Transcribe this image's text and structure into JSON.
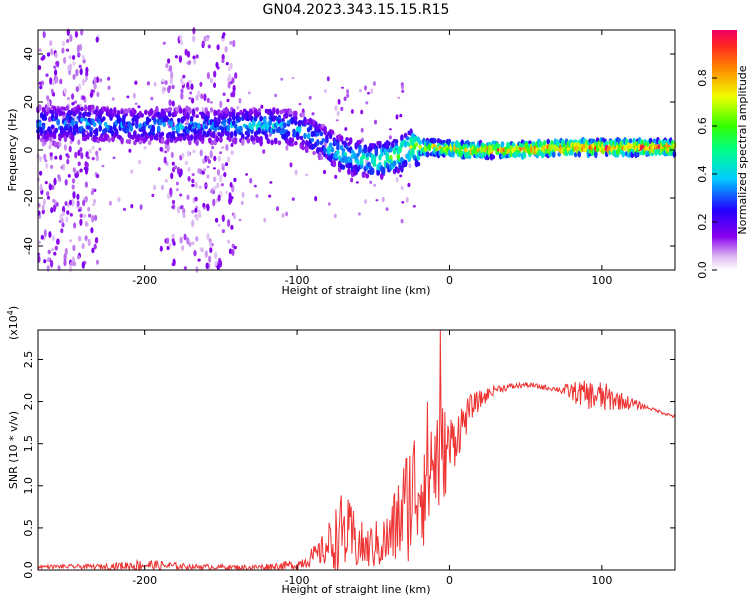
{
  "title": "GN04.2023.343.15.15.R15",
  "chart_data": [
    {
      "type": "heatmap",
      "name": "spectrogram",
      "xlabel": "Height of straight line (km)",
      "ylabel": "Frequency (Hz)",
      "xlim": [
        -270,
        148
      ],
      "ylim": [
        -50,
        50
      ],
      "xticks": [
        "-200",
        "-100",
        "0",
        "100"
      ],
      "xtick_values": [
        -200,
        -100,
        0,
        100
      ],
      "yticks": [
        "40",
        "20",
        "0",
        "-20",
        "-40"
      ],
      "ytick_values": [
        40,
        20,
        0,
        -20,
        -40
      ],
      "colorbar": {
        "label": "Normalized spectral amplitude",
        "ticks": [
          "0.0",
          "0.2",
          "0.4",
          "0.6",
          "0.8"
        ],
        "tick_values": [
          0.0,
          0.2,
          0.4,
          0.6,
          0.8
        ],
        "range": [
          0,
          1
        ]
      },
      "ridge": [
        {
          "x": -270,
          "y": 11,
          "amp": 0.35
        },
        {
          "x": -240,
          "y": 11,
          "amp": 0.4
        },
        {
          "x": -210,
          "y": 10,
          "amp": 0.35
        },
        {
          "x": -180,
          "y": 10,
          "amp": 0.4
        },
        {
          "x": -150,
          "y": 10,
          "amp": 0.35
        },
        {
          "x": -120,
          "y": 10,
          "amp": 0.45
        },
        {
          "x": -100,
          "y": 9,
          "amp": 0.4
        },
        {
          "x": -85,
          "y": 4,
          "amp": 0.4
        },
        {
          "x": -70,
          "y": -2,
          "amp": 0.5
        },
        {
          "x": -55,
          "y": -4,
          "amp": 0.5
        },
        {
          "x": -40,
          "y": -4,
          "amp": 0.6
        },
        {
          "x": -25,
          "y": 1,
          "amp": 0.7
        },
        {
          "x": -10,
          "y": 1,
          "amp": 0.8
        },
        {
          "x": 10,
          "y": 0,
          "amp": 0.9
        },
        {
          "x": 40,
          "y": 0,
          "amp": 0.95
        },
        {
          "x": 80,
          "y": 1,
          "amp": 1.0
        },
        {
          "x": 120,
          "y": 1,
          "amp": 1.0
        },
        {
          "x": 148,
          "y": 1,
          "amp": 0.95
        }
      ],
      "noise_bands_x": [
        [
          -270,
          -230
        ],
        [
          -190,
          -140
        ]
      ]
    },
    {
      "type": "line",
      "name": "snr",
      "xlabel": "Height of straight line (km)",
      "ylabel": "SNR (10 * v/v)",
      "scale_label": "(x10",
      "scale_exp": "4",
      "scale_suffix": ")",
      "color": "#ee3333",
      "xlim": [
        -270,
        148
      ],
      "ylim": [
        0,
        2.85
      ],
      "xticks": [
        "-200",
        "-100",
        "0",
        "100"
      ],
      "xtick_values": [
        -200,
        -100,
        0,
        100
      ],
      "yticks": [
        "0.0",
        "0.5",
        "1.0",
        "1.5",
        "2.0",
        "2.5"
      ],
      "ytick_values": [
        0.0,
        0.5,
        1.0,
        1.5,
        2.0,
        2.5
      ],
      "envelope": [
        {
          "x": -270,
          "y": 0.04,
          "noise": 0.02
        },
        {
          "x": -230,
          "y": 0.04,
          "noise": 0.03
        },
        {
          "x": -200,
          "y": 0.06,
          "noise": 0.07
        },
        {
          "x": -170,
          "y": 0.04,
          "noise": 0.03
        },
        {
          "x": -130,
          "y": 0.03,
          "noise": 0.03
        },
        {
          "x": -100,
          "y": 0.06,
          "noise": 0.06
        },
        {
          "x": -85,
          "y": 0.2,
          "noise": 0.15
        },
        {
          "x": -70,
          "y": 0.45,
          "noise": 0.5
        },
        {
          "x": -55,
          "y": 0.25,
          "noise": 0.25
        },
        {
          "x": -40,
          "y": 0.35,
          "noise": 0.35
        },
        {
          "x": -25,
          "y": 0.9,
          "noise": 0.8
        },
        {
          "x": -10,
          "y": 1.3,
          "noise": 0.9
        },
        {
          "x": 0,
          "y": 1.45,
          "noise": 0.4
        },
        {
          "x": 15,
          "y": 1.95,
          "noise": 0.15
        },
        {
          "x": 30,
          "y": 2.15,
          "noise": 0.05
        },
        {
          "x": 50,
          "y": 2.2,
          "noise": 0.03
        },
        {
          "x": 70,
          "y": 2.15,
          "noise": 0.03
        },
        {
          "x": 85,
          "y": 2.1,
          "noise": 0.15
        },
        {
          "x": 100,
          "y": 2.05,
          "noise": 0.2
        },
        {
          "x": 110,
          "y": 2.02,
          "noise": 0.12
        },
        {
          "x": 130,
          "y": 1.93,
          "noise": 0.02
        },
        {
          "x": 148,
          "y": 1.82,
          "noise": 0.02
        }
      ],
      "peak": {
        "x": -6,
        "y": 2.85
      }
    }
  ]
}
